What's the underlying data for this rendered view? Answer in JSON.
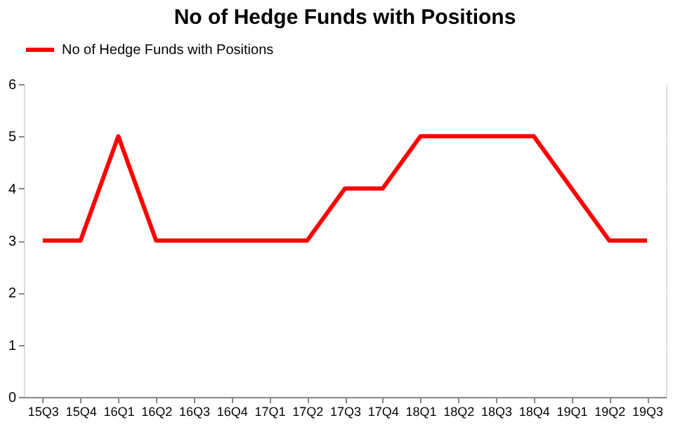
{
  "chart_data": {
    "type": "line",
    "title": "No of Hedge Funds with Positions",
    "categories": [
      "15Q3",
      "15Q4",
      "16Q1",
      "16Q2",
      "16Q3",
      "16Q4",
      "17Q1",
      "17Q2",
      "17Q3",
      "17Q4",
      "18Q1",
      "18Q2",
      "18Q3",
      "18Q4",
      "19Q1",
      "19Q2",
      "19Q3"
    ],
    "series": [
      {
        "name": "No of Hedge Funds with Positions",
        "color": "#ff0000",
        "values": [
          3,
          3,
          5,
          3,
          3,
          3,
          3,
          3,
          4,
          4,
          5,
          5,
          5,
          5,
          4,
          3,
          3
        ]
      }
    ],
    "ylim": [
      0,
      6
    ],
    "yticks": [
      0,
      1,
      2,
      3,
      4,
      5,
      6
    ],
    "grid": "y",
    "legend": "top",
    "marker": "none",
    "line_style": "solid"
  }
}
